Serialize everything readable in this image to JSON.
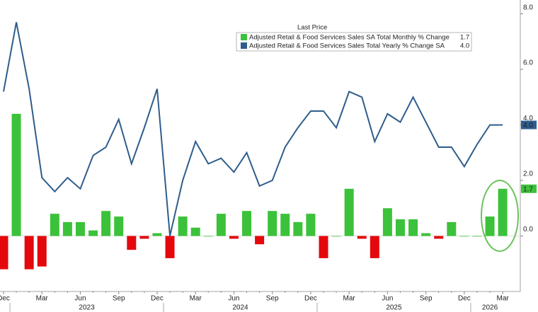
{
  "chart_data": {
    "type": "bar",
    "legend_title": "Last Price",
    "categories": [
      "Dec",
      null,
      null,
      "Mar",
      null,
      null,
      "Jun",
      null,
      null,
      "Sep",
      null,
      null,
      "Dec",
      null,
      null,
      "Mar",
      null,
      null,
      "Jun",
      null,
      null,
      "Sep",
      null,
      null,
      "Dec",
      null,
      null,
      "Mar",
      null,
      null,
      "Jun",
      null,
      null,
      "Sep",
      null,
      null,
      "Dec",
      null,
      null,
      "Mar"
    ],
    "x_groups": [
      {
        "label": "2023",
        "start": 1,
        "end": 12
      },
      {
        "label": "2024",
        "start": 13,
        "end": 24
      },
      {
        "label": "2025",
        "start": 25,
        "end": 36
      },
      {
        "label": "2026",
        "start": 37,
        "end": 39
      }
    ],
    "series": [
      {
        "name": "Adjusted Retail & Food Services Sales SA Total Monthly % Change",
        "type": "bar",
        "color": "#3cc23a",
        "negative_color": "#e4080c",
        "values": [
          -1.2,
          4.4,
          -1.2,
          -1.1,
          0.8,
          0.5,
          0.5,
          0.2,
          0.9,
          0.7,
          -0.5,
          -0.1,
          0.1,
          -0.8,
          0.7,
          0.3,
          0.0,
          0.8,
          -0.1,
          0.9,
          -0.3,
          0.9,
          0.8,
          0.5,
          0.8,
          -0.8,
          0.0,
          1.7,
          -0.1,
          -0.8,
          1.0,
          0.6,
          0.6,
          0.1,
          -0.1,
          0.5,
          0.0,
          0.0,
          0.7,
          1.7
        ]
      },
      {
        "name": "Adjusted Retail & Food Services Sales Total Yearly % Change SA",
        "type": "line",
        "color": "#2f5d8c",
        "values": [
          5.2,
          7.7,
          5.3,
          2.1,
          1.6,
          2.1,
          1.7,
          2.9,
          3.2,
          4.2,
          2.6,
          3.9,
          5.3,
          0.0,
          2.0,
          3.4,
          2.6,
          2.8,
          2.3,
          3.0,
          1.8,
          2.0,
          3.2,
          3.9,
          4.5,
          4.5,
          3.9,
          5.2,
          5.0,
          3.4,
          4.4,
          4.1,
          5.0,
          4.1,
          3.2,
          3.2,
          2.5,
          3.3,
          4.0,
          4.0
        ],
        "value_labels": [
          null,
          null,
          null,
          null,
          null,
          null,
          null,
          null,
          null,
          null,
          null,
          null,
          null,
          null,
          null,
          null,
          null,
          null,
          null,
          null,
          null,
          null,
          null,
          null,
          null,
          null,
          null,
          null,
          null,
          null,
          null,
          null,
          null,
          null,
          null,
          null,
          null,
          null,
          null,
          "4.0"
        ]
      }
    ],
    "ylim": [
      -2,
      8.5
    ],
    "yticks": [
      {
        "value": 0,
        "label": "0.0"
      },
      {
        "value": 2,
        "label": "2.0"
      },
      {
        "value": 4,
        "label": "4.0"
      },
      {
        "value": 6,
        "label": "6.0"
      },
      {
        "value": 8,
        "label": "8.0"
      }
    ],
    "grid": false
  }
}
